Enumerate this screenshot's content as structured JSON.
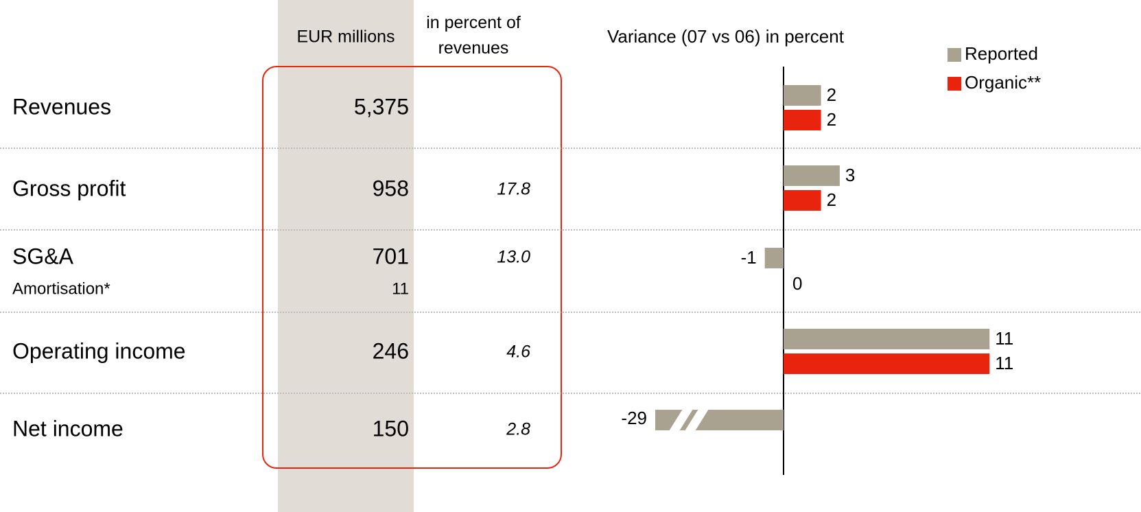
{
  "table": {
    "headers": [
      "EUR millions",
      "in percent of revenues"
    ],
    "rows": [
      [
        "Revenues",
        "5,375",
        null
      ],
      [
        "Gross profit",
        "958",
        "17.8"
      ],
      [
        "SG&A",
        "701",
        "13.0"
      ],
      [
        "Amortisation*",
        "11",
        null
      ],
      [
        "Operating income",
        "246",
        "4.6"
      ],
      [
        "Net income",
        "150",
        "2.8"
      ]
    ]
  },
  "chart_data": {
    "type": "bar",
    "orientation": "horizontal",
    "title": "Variance (07 vs 06) in percent",
    "series": [
      {
        "name": "Reported",
        "color": "#aaa291",
        "values": [
          2,
          3,
          -1,
          11,
          -29
        ]
      },
      {
        "name": "Organic**",
        "color": "#e8240f",
        "values": [
          2,
          2,
          0,
          11,
          null
        ]
      }
    ],
    "legend": "upper right"
  }
}
